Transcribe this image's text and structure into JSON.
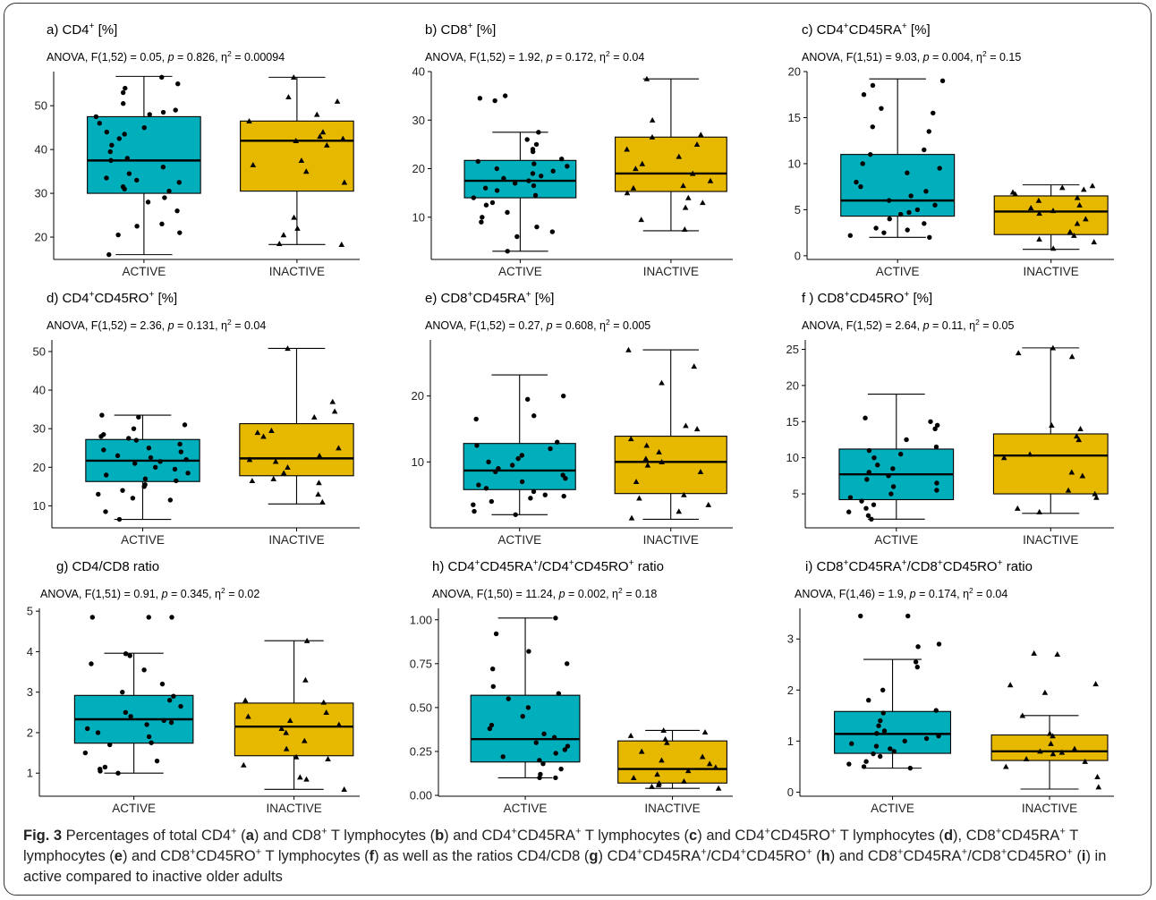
{
  "colors": {
    "active": "#00AFBB",
    "inactive": "#E7B800",
    "point": "#000000"
  },
  "chart_data": [
    {
      "id": "a",
      "type": "box",
      "title_html": "a) CD4<sup>+</sup> [%]",
      "stat_html": "ANOVA, F(1,52) = 0.05, <i>p</i> = 0.826, η<sup>2</sup> = 0.00094",
      "categories": [
        "ACTIVE",
        "INACTIVE"
      ],
      "ylim": [
        14.9,
        57.8
      ],
      "yticks": [
        20,
        30,
        40,
        50
      ],
      "boxes": [
        {
          "category": "ACTIVE",
          "min": 16.0,
          "q1": 30.0,
          "median": 37.5,
          "q3": 47.5,
          "max": 56.7,
          "points": [
            56.5,
            55.0,
            54.0,
            53.0,
            50.5,
            49.0,
            48.5,
            48.0,
            47.5,
            46.0,
            45.0,
            44.0,
            43.5,
            42.5,
            41.0,
            39.5,
            38.0,
            37.5,
            36.0,
            34.5,
            33.5,
            33.0,
            32.5,
            31.5,
            31.0,
            30.5,
            29.0,
            28.0,
            26.0,
            23.0,
            22.5,
            21.0,
            20.5,
            16.0
          ]
        },
        {
          "category": "INACTIVE",
          "min": 18.3,
          "q1": 30.5,
          "median": 42.0,
          "q3": 46.5,
          "max": 56.5,
          "points": [
            56.5,
            52.0,
            51.0,
            48.0,
            46.5,
            44.0,
            43.0,
            42.5,
            42.0,
            41.0,
            37.5,
            36.5,
            35.0,
            32.5,
            24.5,
            22.0,
            20.5,
            18.5,
            18.3
          ]
        }
      ]
    },
    {
      "id": "b",
      "type": "box",
      "title_html": "b) CD8<sup>+</sup> [%]",
      "stat_html": "ANOVA, F(1,52) = 1.92, <i>p</i> = 0.172, η<sup>2</sup> = 0.04",
      "categories": [
        "ACTIVE",
        "INACTIVE"
      ],
      "ylim": [
        1.3,
        40.0
      ],
      "yticks": [
        10,
        20,
        30,
        40
      ],
      "boxes": [
        {
          "category": "ACTIVE",
          "min": 3.0,
          "q1": 14.0,
          "median": 17.5,
          "q3": 21.7,
          "max": 27.5,
          "points": [
            35.0,
            34.5,
            34.0,
            27.5,
            26.0,
            25.0,
            24.0,
            23.5,
            22.0,
            21.5,
            21.0,
            20.5,
            20.0,
            19.5,
            19.0,
            18.5,
            18.0,
            17.5,
            17.0,
            16.5,
            16.0,
            15.5,
            14.5,
            14.0,
            13.0,
            12.5,
            11.0,
            10.0,
            9.0,
            8.0,
            7.0,
            6.0,
            3.0
          ]
        },
        {
          "category": "INACTIVE",
          "min": 7.2,
          "q1": 15.3,
          "median": 19.0,
          "q3": 26.5,
          "max": 38.5,
          "points": [
            38.5,
            30.0,
            27.0,
            26.5,
            25.0,
            24.0,
            22.5,
            21.0,
            20.0,
            19.0,
            17.5,
            16.5,
            16.0,
            15.0,
            14.0,
            13.0,
            12.0,
            9.5,
            7.5
          ]
        }
      ]
    },
    {
      "id": "c",
      "type": "box",
      "title_html": "c) CD4<sup>+</sup>CD45RA<sup>+</sup> [%]",
      "stat_html": "ANOVA, F(1,51) = 9.03, <i>p</i> = 0.004, η<sup>2</sup> = 0.15",
      "categories": [
        "ACTIVE",
        "INACTIVE"
      ],
      "ylim": [
        -0.4,
        20.0
      ],
      "yticks": [
        0,
        5,
        10,
        15,
        20
      ],
      "boxes": [
        {
          "category": "ACTIVE",
          "min": 2.0,
          "q1": 4.3,
          "median": 6.0,
          "q3": 11.0,
          "max": 19.2,
          "points": [
            19.0,
            18.5,
            17.5,
            16.0,
            15.5,
            14.0,
            13.5,
            11.5,
            11.0,
            10.0,
            9.5,
            9.0,
            8.0,
            7.5,
            7.0,
            6.5,
            6.0,
            5.5,
            5.0,
            4.7,
            4.5,
            4.0,
            3.5,
            3.0,
            2.8,
            2.5,
            2.2,
            2.0
          ]
        },
        {
          "category": "INACTIVE",
          "min": 0.7,
          "q1": 2.3,
          "median": 4.8,
          "q3": 6.5,
          "max": 7.7,
          "points": [
            7.6,
            7.4,
            7.2,
            6.9,
            6.7,
            6.3,
            6.0,
            5.5,
            5.2,
            4.9,
            4.6,
            4.0,
            3.5,
            2.6,
            2.2,
            1.8,
            1.5,
            0.8
          ]
        }
      ]
    },
    {
      "id": "d",
      "type": "box",
      "title_html": "d) CD4<sup>+</sup>CD45RO<sup>+</sup> [%]",
      "stat_html": "ANOVA, F(1,52) = 2.36, <i>p</i> = 0.131, η<sup>2</sup> = 0.04",
      "categories": [
        "ACTIVE",
        "INACTIVE"
      ],
      "ylim": [
        4.3,
        53.0
      ],
      "yticks": [
        10,
        20,
        30,
        40,
        50
      ],
      "boxes": [
        {
          "category": "ACTIVE",
          "min": 6.5,
          "q1": 16.3,
          "median": 21.7,
          "q3": 27.2,
          "max": 33.5,
          "points": [
            33.5,
            33.0,
            31.0,
            30.0,
            28.5,
            28.0,
            27.5,
            27.0,
            26.0,
            25.0,
            24.5,
            24.0,
            23.0,
            22.5,
            22.0,
            21.5,
            21.0,
            20.0,
            19.5,
            18.5,
            18.0,
            17.0,
            16.5,
            15.5,
            15.0,
            14.0,
            13.0,
            12.0,
            11.5,
            8.5,
            6.5
          ]
        },
        {
          "category": "INACTIVE",
          "min": 10.5,
          "q1": 17.8,
          "median": 22.3,
          "q3": 31.3,
          "max": 50.8,
          "points": [
            50.8,
            37.0,
            34.5,
            33.0,
            29.5,
            29.0,
            28.0,
            25.0,
            23.0,
            22.0,
            21.5,
            20.0,
            18.5,
            17.0,
            16.5,
            16.0,
            13.0,
            11.0
          ]
        }
      ]
    },
    {
      "id": "e",
      "type": "box",
      "title_html": "e) CD8<sup>+</sup>CD45RA<sup>+</sup> [%]",
      "stat_html": "ANOVA, F(1,52) = 0.27, <i>p</i> = 0.608, η<sup>2</sup> = 0.005",
      "categories": [
        "ACTIVE",
        "INACTIVE"
      ],
      "ylim": [
        0.0,
        28.5
      ],
      "yticks": [
        10,
        20
      ],
      "boxes": [
        {
          "category": "ACTIVE",
          "min": 2.0,
          "q1": 5.8,
          "median": 8.7,
          "q3": 12.8,
          "max": 23.2,
          "points": [
            20.0,
            19.5,
            17.0,
            16.5,
            13.0,
            12.5,
            12.0,
            11.0,
            10.5,
            10.0,
            9.5,
            9.0,
            8.5,
            8.0,
            7.5,
            7.0,
            6.5,
            6.0,
            5.5,
            5.0,
            4.8,
            4.5,
            4.0,
            3.5,
            2.5,
            2.0
          ]
        },
        {
          "category": "INACTIVE",
          "min": 1.3,
          "q1": 5.2,
          "median": 10.0,
          "q3": 13.9,
          "max": 27.0,
          "points": [
            27.0,
            24.5,
            22.0,
            15.5,
            15.0,
            13.5,
            12.5,
            11.5,
            10.5,
            10.0,
            9.5,
            8.5,
            7.0,
            5.0,
            4.5,
            3.5,
            2.5,
            1.5
          ]
        }
      ]
    },
    {
      "id": "f",
      "type": "box",
      "title_html": "f ) CD8<sup>+</sup>CD45RO<sup>+</sup> [%]",
      "stat_html": "ANOVA, F(1,52) = 2.64, <i>p</i> = 0.11, η<sup>2</sup> = 0.05",
      "categories": [
        "ACTIVE",
        "INACTIVE"
      ],
      "ylim": [
        0.3,
        26.3
      ],
      "yticks": [
        5,
        10,
        15,
        20,
        25
      ],
      "boxes": [
        {
          "category": "ACTIVE",
          "min": 1.5,
          "q1": 4.2,
          "median": 7.7,
          "q3": 11.2,
          "max": 18.8,
          "points": [
            15.5,
            15.0,
            14.5,
            14.0,
            12.5,
            11.5,
            11.0,
            10.5,
            10.0,
            9.0,
            8.5,
            8.0,
            7.5,
            7.0,
            6.5,
            6.0,
            5.5,
            5.0,
            4.5,
            4.0,
            3.5,
            3.0,
            2.5,
            2.0,
            1.5
          ]
        },
        {
          "category": "INACTIVE",
          "min": 2.3,
          "q1": 5.0,
          "median": 10.3,
          "q3": 13.3,
          "max": 25.2,
          "points": [
            25.2,
            24.5,
            24.0,
            14.5,
            14.0,
            13.0,
            12.5,
            10.5,
            10.0,
            8.0,
            7.5,
            5.5,
            5.0,
            4.5,
            3.0,
            2.5
          ]
        }
      ]
    },
    {
      "id": "g",
      "type": "box",
      "title_html": "g) CD4/CD8 ratio",
      "stat_html": "ANOVA, F(1,51) = 0.91, <i>p</i> = 0.345, η<sup>2</sup> = 0.02",
      "categories": [
        "ACTIVE",
        "INACTIVE"
      ],
      "ylim": [
        0.43,
        5.07
      ],
      "yticks": [
        1,
        2,
        3,
        4,
        5
      ],
      "boxes": [
        {
          "category": "ACTIVE",
          "min": 1.0,
          "q1": 1.74,
          "median": 2.33,
          "q3": 2.92,
          "max": 3.96,
          "points": [
            4.85,
            4.85,
            4.85,
            3.95,
            3.9,
            3.7,
            3.55,
            3.2,
            3.0,
            2.9,
            2.8,
            2.65,
            2.5,
            2.4,
            2.3,
            2.25,
            2.2,
            2.1,
            2.0,
            1.9,
            1.75,
            1.7,
            1.5,
            1.3,
            1.15,
            1.1,
            1.05,
            1.0
          ]
        },
        {
          "category": "INACTIVE",
          "min": 0.6,
          "q1": 1.43,
          "median": 2.15,
          "q3": 2.73,
          "max": 4.27,
          "points": [
            4.27,
            3.3,
            2.8,
            2.75,
            2.5,
            2.4,
            2.3,
            2.2,
            2.1,
            2.0,
            1.8,
            1.6,
            1.4,
            1.35,
            1.2,
            0.9,
            0.85,
            0.6
          ]
        }
      ]
    },
    {
      "id": "h",
      "type": "box",
      "title_html": "h) CD4<sup>+</sup>CD45RA<sup>+</sup>/CD4<sup>+</sup>CD45RO<sup>+</sup> ratio",
      "stat_html": "ANOVA, F(1,50) = 11.24, <i>p</i> = 0.002, η<sup>2</sup> = 0.18",
      "categories": [
        "ACTIVE",
        "INACTIVE"
      ],
      "ylim": [
        -0.005,
        1.065
      ],
      "yticks": [
        0.0,
        0.25,
        0.5,
        0.75,
        1.0
      ],
      "tick_labels": [
        "0.00",
        "0.25",
        "0.50",
        "0.75",
        "1.00"
      ],
      "boxes": [
        {
          "category": "ACTIVE",
          "min": 0.1,
          "q1": 0.19,
          "median": 0.32,
          "q3": 0.57,
          "max": 1.01,
          "points": [
            1.01,
            0.92,
            0.82,
            0.75,
            0.72,
            0.62,
            0.58,
            0.55,
            0.5,
            0.45,
            0.4,
            0.38,
            0.35,
            0.33,
            0.3,
            0.28,
            0.26,
            0.24,
            0.22,
            0.2,
            0.18,
            0.15,
            0.12,
            0.1,
            0.1
          ]
        },
        {
          "category": "INACTIVE",
          "min": 0.04,
          "q1": 0.07,
          "median": 0.15,
          "q3": 0.31,
          "max": 0.37,
          "points": [
            0.37,
            0.36,
            0.34,
            0.32,
            0.3,
            0.25,
            0.22,
            0.2,
            0.18,
            0.16,
            0.14,
            0.12,
            0.1,
            0.08,
            0.07,
            0.06,
            0.05,
            0.04
          ]
        }
      ]
    },
    {
      "id": "i",
      "type": "box",
      "title_html": "i) CD8<sup>+</sup>CD45RA<sup>+</sup>/CD8<sup>+</sup>CD45RO<sup>+</sup> ratio",
      "stat_html": "ANOVA, F(1,46) = 1.9, <i>p</i> = 0.174, η<sup>2</sup> = 0.04",
      "categories": [
        "ACTIVE",
        "INACTIVE"
      ],
      "ylim": [
        -0.08,
        3.6
      ],
      "yticks": [
        0,
        1,
        2,
        3
      ],
      "boxes": [
        {
          "category": "ACTIVE",
          "min": 0.47,
          "q1": 0.76,
          "median": 1.14,
          "q3": 1.58,
          "max": 2.6,
          "points": [
            3.45,
            3.45,
            2.9,
            2.85,
            2.55,
            2.45,
            2.0,
            1.8,
            1.6,
            1.55,
            1.4,
            1.3,
            1.2,
            1.15,
            1.1,
            1.05,
            1.0,
            0.95,
            0.9,
            0.85,
            0.8,
            0.75,
            0.7,
            0.6,
            0.55,
            0.5,
            0.47
          ]
        },
        {
          "category": "INACTIVE",
          "min": 0.06,
          "q1": 0.62,
          "median": 0.8,
          "q3": 1.12,
          "max": 1.5,
          "points": [
            2.72,
            2.7,
            2.12,
            2.1,
            1.95,
            1.5,
            1.15,
            1.1,
            0.95,
            0.85,
            0.8,
            0.78,
            0.75,
            0.65,
            0.6,
            0.5,
            0.3,
            0.1
          ]
        }
      ]
    }
  ],
  "caption_html": "<b>Fig. 3</b> Percentages of total CD4<sup>+</sup> (<b>a</b>) and CD8<sup>+</sup> T lymphocytes (<b>b</b>) and CD4<sup>+</sup>CD45RA<sup>+</sup> T lymphocytes (<b>c</b>) and CD4<sup>+</sup>CD45RO<sup>+</sup> T lymphocytes (<b>d</b>), CD8<sup>+</sup>CD45RA<sup>+</sup> T lymphocytes (<b>e</b>) and CD8<sup>+</sup>CD45RO<sup>+</sup> T lymphocytes (<b>f</b>) as well as the ratios CD4/CD8 (<b>g</b>) CD4<sup>+</sup>CD45RA<sup>+</sup>/CD4<sup>+</sup>CD45RO<sup>+</sup> (<b>h</b>) and CD8<sup>+</sup>CD45RA<sup>+</sup>/CD8<sup>+</sup>CD45RO<sup>+</sup> (<b>i</b>) in active compared to inactive older adults"
}
